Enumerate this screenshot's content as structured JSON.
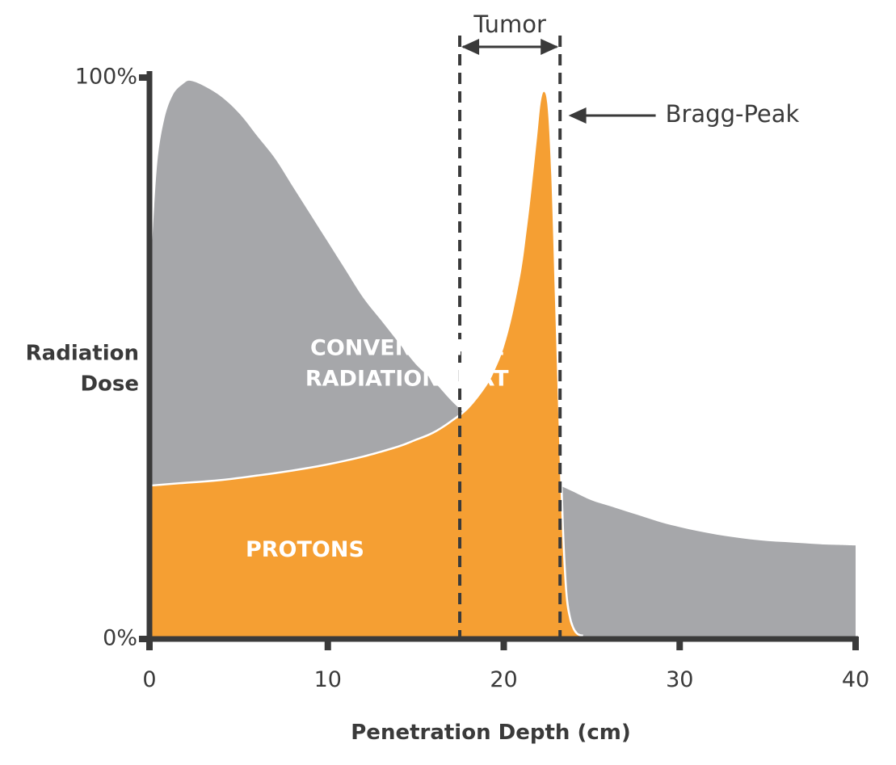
{
  "chart_data": {
    "type": "area",
    "title": "",
    "xlabel": "Penetration Depth (cm)",
    "ylabel": [
      "Radiation",
      "Dose"
    ],
    "xlim": [
      0,
      40
    ],
    "ylim": [
      0,
      100
    ],
    "x_ticks": [
      0,
      10,
      20,
      30,
      40
    ],
    "x_tick_labels": [
      "0",
      "10",
      "20",
      "30",
      "40"
    ],
    "y_ticks": [
      0,
      100
    ],
    "y_tick_labels": [
      "0%",
      "100%"
    ],
    "grid": false,
    "series": [
      {
        "name": "CONVENTIONAL RADIATION/IMRT",
        "label_lines": [
          "CONVENTIONAL",
          "RADIATION/IMRT"
        ],
        "label_at": [
          14.5,
          49
        ],
        "color": "#a6a7aa",
        "x": [
          0,
          0.3,
          0.7,
          1.2,
          1.8,
          2.2,
          3,
          4,
          5,
          6,
          7,
          8,
          9,
          10,
          11,
          12,
          13,
          14,
          15,
          16,
          17,
          18,
          19,
          20,
          21,
          22,
          23,
          24,
          25,
          26,
          27,
          28,
          29,
          30,
          31,
          32,
          33,
          34,
          35,
          36,
          37,
          38,
          39,
          40
        ],
        "y": [
          70,
          85,
          93,
          97.5,
          99.5,
          100,
          99,
          97,
          94,
          90,
          86,
          81,
          76,
          71,
          66,
          61,
          57,
          53,
          49,
          46,
          42.5,
          39.5,
          36.5,
          34,
          31.5,
          29.5,
          27.5,
          26,
          24.5,
          23.5,
          22.5,
          21.5,
          20.5,
          19.7,
          19,
          18.4,
          17.9,
          17.5,
          17.2,
          17,
          16.8,
          16.6,
          16.5,
          16.4
        ]
      },
      {
        "name": "PROTONS",
        "label_lines": [
          "PROTONS"
        ],
        "label_at": [
          8.7,
          15.5
        ],
        "color": "#f59f33",
        "x": [
          0,
          2,
          4,
          6,
          8,
          10,
          12,
          14,
          15,
          16,
          17,
          18,
          19,
          19.5,
          20,
          20.5,
          21,
          21.3,
          21.6,
          21.9,
          22.1,
          22.3,
          22.5,
          22.7,
          22.9,
          23.1,
          23.3,
          23.5,
          23.7,
          23.9,
          24.1,
          24.3,
          24.5
        ],
        "y": [
          27,
          27.5,
          28,
          28.8,
          29.7,
          30.8,
          32.2,
          34,
          35.2,
          36.5,
          38.5,
          41,
          45,
          48,
          52,
          58,
          66,
          73,
          81,
          90,
          96,
          98,
          95,
          83,
          62,
          40,
          20,
          8,
          3.5,
          1.5,
          0.5,
          0.1,
          0
        ]
      }
    ],
    "annotations": {
      "tumor": {
        "text": "Tumor",
        "x_start": 17.5,
        "x_end": 23.2
      },
      "bragg_peak": {
        "text": "Bragg-Peak",
        "peak_x": 22.3,
        "peak_y": 98
      }
    },
    "colors": {
      "axis": "#3a3a3a",
      "text": "#3a3a3a",
      "outline": "#ffffff"
    }
  }
}
